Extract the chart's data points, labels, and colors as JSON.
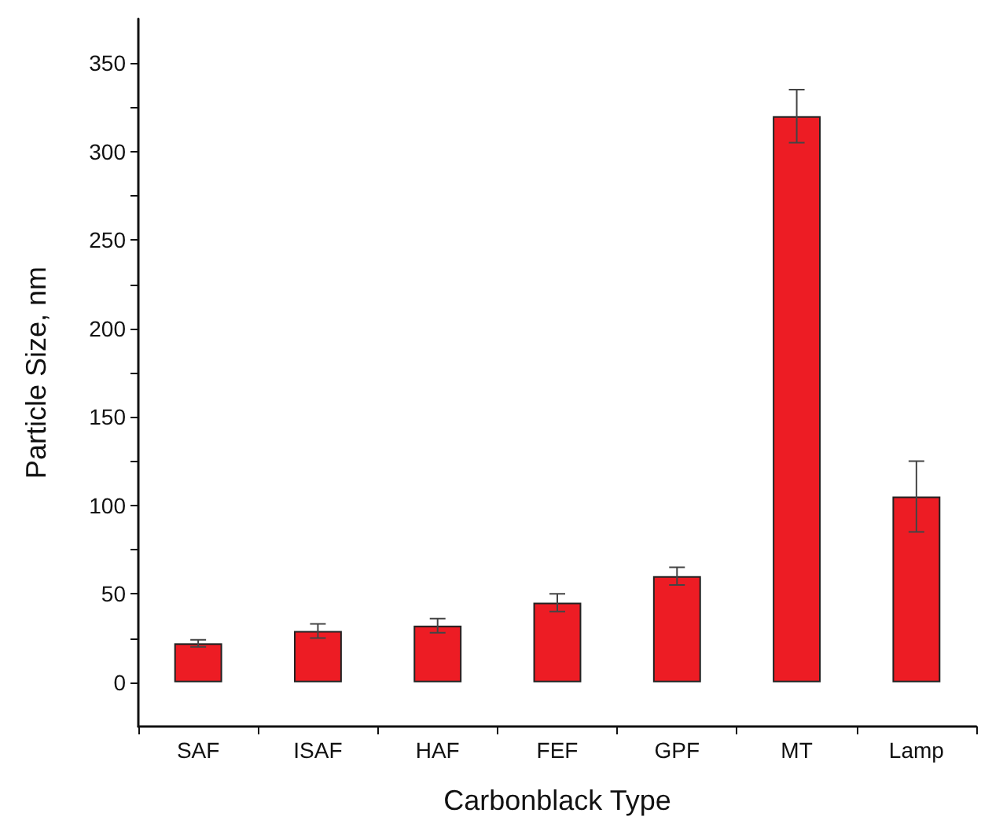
{
  "chart_data": {
    "type": "bar",
    "xlabel": "Carbonblack Type",
    "ylabel": "Particle Size, nm",
    "categories": [
      "SAF",
      "ISAF",
      "HAF",
      "FEF",
      "GPF",
      "MT",
      "Lamp"
    ],
    "values": [
      22,
      29,
      32,
      45,
      60,
      320,
      105
    ],
    "errors": [
      2,
      4,
      4,
      5,
      5,
      15,
      20
    ],
    "color": "#ed1c24",
    "ylim": [
      -25,
      375
    ],
    "yticks": [
      0,
      {
        "value": 25,
        "label": null
      },
      50,
      {
        "value": 75,
        "label": null
      },
      100,
      {
        "value": 125,
        "label": null
      },
      150,
      {
        "value": 175,
        "label": null
      },
      200,
      {
        "value": 225,
        "label": null
      },
      250,
      {
        "value": 275,
        "label": null
      },
      300,
      {
        "value": 325,
        "label": null
      },
      350
    ],
    "grid": false
  }
}
